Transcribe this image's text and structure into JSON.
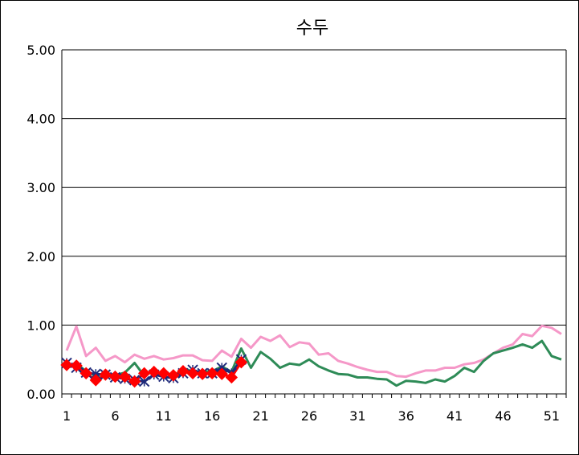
{
  "chart_data": {
    "type": "line",
    "title": "수두",
    "xlabel": "",
    "ylabel": "",
    "ylim": [
      0,
      5
    ],
    "xlim": [
      1,
      53
    ],
    "yticks": [
      "0.00",
      "1.00",
      "2.00",
      "3.00",
      "4.00",
      "5.00"
    ],
    "xticks": [
      1,
      6,
      11,
      16,
      21,
      26,
      31,
      36,
      41,
      46,
      51
    ],
    "grid": "horizontal",
    "legend": "none",
    "series": [
      {
        "color": "#f598c8",
        "marker": "none",
        "x": [
          1,
          2,
          3,
          4,
          5,
          6,
          7,
          8,
          9,
          10,
          11,
          12,
          13,
          14,
          15,
          16,
          17,
          18,
          19,
          20,
          21,
          22,
          23,
          24,
          25,
          26,
          27,
          28,
          29,
          30,
          31,
          32,
          33,
          34,
          35,
          36,
          37,
          38,
          39,
          40,
          41,
          42,
          43,
          44,
          45,
          46,
          47,
          48,
          49,
          50,
          51,
          52
        ],
        "values": [
          0.63,
          0.98,
          0.55,
          0.67,
          0.48,
          0.55,
          0.46,
          0.57,
          0.51,
          0.55,
          0.5,
          0.52,
          0.56,
          0.56,
          0.49,
          0.48,
          0.63,
          0.54,
          0.8,
          0.67,
          0.83,
          0.77,
          0.85,
          0.68,
          0.75,
          0.73,
          0.57,
          0.59,
          0.48,
          0.44,
          0.39,
          0.35,
          0.32,
          0.32,
          0.26,
          0.25,
          0.3,
          0.34,
          0.34,
          0.38,
          0.38,
          0.43,
          0.45,
          0.5,
          0.59,
          0.67,
          0.72,
          0.87,
          0.84,
          0.99,
          0.96,
          0.87
        ]
      },
      {
        "color": "#2e8b57",
        "marker": "none",
        "x": [
          1,
          2,
          3,
          4,
          5,
          6,
          7,
          8,
          9,
          10,
          11,
          12,
          13,
          14,
          15,
          16,
          17,
          18,
          19,
          20,
          21,
          22,
          23,
          24,
          25,
          26,
          27,
          28,
          29,
          30,
          31,
          32,
          33,
          34,
          35,
          36,
          37,
          38,
          39,
          40,
          41,
          42,
          43,
          44,
          45,
          46,
          47,
          48,
          49,
          50,
          51,
          52
        ],
        "values": [
          0.38,
          0.44,
          0.33,
          0.26,
          0.3,
          0.27,
          0.31,
          0.45,
          0.26,
          0.34,
          0.24,
          0.24,
          0.38,
          0.32,
          0.32,
          0.33,
          0.4,
          0.32,
          0.66,
          0.38,
          0.61,
          0.51,
          0.38,
          0.44,
          0.42,
          0.5,
          0.4,
          0.34,
          0.29,
          0.28,
          0.24,
          0.24,
          0.22,
          0.21,
          0.12,
          0.19,
          0.18,
          0.16,
          0.21,
          0.18,
          0.26,
          0.38,
          0.32,
          0.48,
          0.59,
          0.63,
          0.67,
          0.72,
          0.67,
          0.77,
          0.55,
          0.5
        ]
      },
      {
        "color": "#1f2a7a",
        "marker": "x",
        "x": [
          1,
          2,
          3,
          4,
          5,
          6,
          7,
          8,
          9,
          10,
          11,
          12,
          13,
          14,
          15,
          16,
          17,
          18,
          19
        ],
        "values": [
          0.45,
          0.38,
          0.31,
          0.29,
          0.28,
          0.24,
          0.22,
          0.2,
          0.18,
          0.28,
          0.25,
          0.23,
          0.3,
          0.35,
          0.3,
          0.3,
          0.38,
          0.3,
          0.5
        ]
      },
      {
        "color": "#ff0000",
        "marker": "diamond",
        "x": [
          1,
          2,
          3,
          4,
          5,
          6,
          7,
          8,
          9,
          10,
          11,
          12,
          13,
          14,
          15,
          16,
          17,
          18,
          19
        ],
        "values": [
          0.42,
          0.41,
          0.3,
          0.2,
          0.28,
          0.25,
          0.25,
          0.18,
          0.3,
          0.32,
          0.3,
          0.27,
          0.33,
          0.3,
          0.29,
          0.3,
          0.29,
          0.24,
          0.46
        ]
      }
    ]
  }
}
